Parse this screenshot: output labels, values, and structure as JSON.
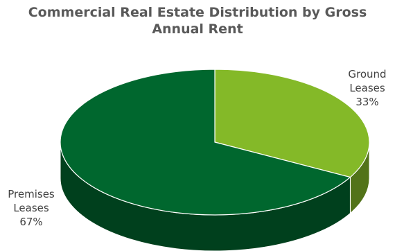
{
  "chart_data": {
    "type": "pie",
    "title_lines": [
      "Commercial Real Estate Distribution by Gross",
      "Annual Rent"
    ],
    "slices": [
      {
        "label_lines": [
          "Ground",
          "Leases"
        ],
        "value": 33,
        "value_label": "33%",
        "color": "#84b928"
      },
      {
        "label_lines": [
          "Premises",
          "Leases"
        ],
        "value": 67,
        "value_label": "67%",
        "color": "#00672e"
      }
    ],
    "style": "3d",
    "legend": "none"
  }
}
